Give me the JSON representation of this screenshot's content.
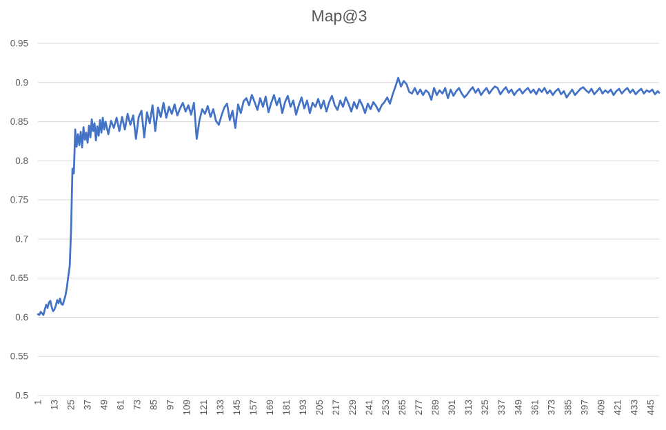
{
  "chart_data": {
    "type": "line",
    "title": "Map@3",
    "xlabel": "",
    "ylabel": "",
    "legend": "none",
    "grid": "horizontal",
    "line_color": "#4472C4",
    "gridline_color": "#D9D9D9",
    "text_color": "#595959",
    "background_color": "#FFFFFF",
    "ylim": [
      0.5,
      0.95
    ],
    "xlim": [
      1,
      451
    ],
    "y_tick_labels": [
      "0.5",
      "0.55",
      "0.6",
      "0.65",
      "0.7",
      "0.75",
      "0.8",
      "0.85",
      "0.9",
      "0.95"
    ],
    "x_tick_labels": [
      "1",
      "13",
      "25",
      "37",
      "49",
      "61",
      "73",
      "85",
      "97",
      "109",
      "121",
      "133",
      "145",
      "157",
      "169",
      "181",
      "193",
      "205",
      "217",
      "229",
      "241",
      "253",
      "265",
      "277",
      "289",
      "301",
      "313",
      "325",
      "337",
      "349",
      "361",
      "373",
      "385",
      "397",
      "409",
      "421",
      "433",
      "445"
    ],
    "points": [
      [
        1,
        0.604
      ],
      [
        2,
        0.603
      ],
      [
        3,
        0.607
      ],
      [
        4,
        0.605
      ],
      [
        5,
        0.603
      ],
      [
        6,
        0.61
      ],
      [
        7,
        0.616
      ],
      [
        8,
        0.612
      ],
      [
        9,
        0.619
      ],
      [
        10,
        0.621
      ],
      [
        11,
        0.613
      ],
      [
        12,
        0.608
      ],
      [
        13,
        0.61
      ],
      [
        14,
        0.615
      ],
      [
        15,
        0.622
      ],
      [
        16,
        0.618
      ],
      [
        17,
        0.624
      ],
      [
        18,
        0.617
      ],
      [
        19,
        0.616
      ],
      [
        20,
        0.622
      ],
      [
        21,
        0.628
      ],
      [
        22,
        0.638
      ],
      [
        23,
        0.652
      ],
      [
        24,
        0.665
      ],
      [
        25,
        0.712
      ],
      [
        26,
        0.79
      ],
      [
        27,
        0.784
      ],
      [
        28,
        0.84
      ],
      [
        29,
        0.818
      ],
      [
        30,
        0.834
      ],
      [
        31,
        0.82
      ],
      [
        32,
        0.837
      ],
      [
        33,
        0.817
      ],
      [
        34,
        0.843
      ],
      [
        35,
        0.827
      ],
      [
        36,
        0.836
      ],
      [
        37,
        0.823
      ],
      [
        38,
        0.845
      ],
      [
        39,
        0.83
      ],
      [
        40,
        0.853
      ],
      [
        41,
        0.838
      ],
      [
        42,
        0.848
      ],
      [
        43,
        0.826
      ],
      [
        44,
        0.844
      ],
      [
        45,
        0.832
      ],
      [
        46,
        0.852
      ],
      [
        47,
        0.836
      ],
      [
        48,
        0.855
      ],
      [
        49,
        0.84
      ],
      [
        50,
        0.85
      ],
      [
        52,
        0.834
      ],
      [
        54,
        0.851
      ],
      [
        56,
        0.842
      ],
      [
        58,
        0.855
      ],
      [
        60,
        0.838
      ],
      [
        62,
        0.856
      ],
      [
        64,
        0.84
      ],
      [
        66,
        0.86
      ],
      [
        68,
        0.846
      ],
      [
        70,
        0.858
      ],
      [
        72,
        0.828
      ],
      [
        74,
        0.856
      ],
      [
        76,
        0.864
      ],
      [
        78,
        0.83
      ],
      [
        80,
        0.862
      ],
      [
        82,
        0.848
      ],
      [
        84,
        0.871
      ],
      [
        86,
        0.838
      ],
      [
        88,
        0.868
      ],
      [
        90,
        0.856
      ],
      [
        92,
        0.874
      ],
      [
        94,
        0.855
      ],
      [
        96,
        0.869
      ],
      [
        98,
        0.86
      ],
      [
        100,
        0.872
      ],
      [
        102,
        0.858
      ],
      [
        104,
        0.867
      ],
      [
        106,
        0.874
      ],
      [
        108,
        0.863
      ],
      [
        110,
        0.871
      ],
      [
        112,
        0.859
      ],
      [
        114,
        0.874
      ],
      [
        116,
        0.828
      ],
      [
        118,
        0.852
      ],
      [
        120,
        0.866
      ],
      [
        122,
        0.86
      ],
      [
        124,
        0.87
      ],
      [
        126,
        0.856
      ],
      [
        128,
        0.866
      ],
      [
        130,
        0.851
      ],
      [
        132,
        0.846
      ],
      [
        134,
        0.858
      ],
      [
        136,
        0.868
      ],
      [
        138,
        0.873
      ],
      [
        140,
        0.852
      ],
      [
        142,
        0.864
      ],
      [
        144,
        0.842
      ],
      [
        146,
        0.872
      ],
      [
        148,
        0.861
      ],
      [
        150,
        0.876
      ],
      [
        152,
        0.88
      ],
      [
        154,
        0.871
      ],
      [
        156,
        0.884
      ],
      [
        158,
        0.875
      ],
      [
        160,
        0.865
      ],
      [
        162,
        0.88
      ],
      [
        164,
        0.869
      ],
      [
        166,
        0.882
      ],
      [
        168,
        0.862
      ],
      [
        170,
        0.874
      ],
      [
        172,
        0.884
      ],
      [
        174,
        0.871
      ],
      [
        176,
        0.88
      ],
      [
        178,
        0.861
      ],
      [
        180,
        0.875
      ],
      [
        182,
        0.883
      ],
      [
        184,
        0.869
      ],
      [
        186,
        0.877
      ],
      [
        188,
        0.859
      ],
      [
        190,
        0.871
      ],
      [
        192,
        0.881
      ],
      [
        194,
        0.867
      ],
      [
        196,
        0.877
      ],
      [
        198,
        0.861
      ],
      [
        200,
        0.874
      ],
      [
        202,
        0.869
      ],
      [
        204,
        0.879
      ],
      [
        206,
        0.867
      ],
      [
        208,
        0.877
      ],
      [
        210,
        0.863
      ],
      [
        212,
        0.875
      ],
      [
        214,
        0.883
      ],
      [
        216,
        0.871
      ],
      [
        218,
        0.865
      ],
      [
        220,
        0.877
      ],
      [
        222,
        0.869
      ],
      [
        224,
        0.881
      ],
      [
        226,
        0.873
      ],
      [
        228,
        0.863
      ],
      [
        230,
        0.875
      ],
      [
        232,
        0.867
      ],
      [
        234,
        0.878
      ],
      [
        236,
        0.871
      ],
      [
        238,
        0.861
      ],
      [
        240,
        0.873
      ],
      [
        242,
        0.866
      ],
      [
        244,
        0.875
      ],
      [
        246,
        0.87
      ],
      [
        248,
        0.863
      ],
      [
        250,
        0.871
      ],
      [
        252,
        0.875
      ],
      [
        254,
        0.881
      ],
      [
        256,
        0.873
      ],
      [
        258,
        0.885
      ],
      [
        260,
        0.895
      ],
      [
        262,
        0.906
      ],
      [
        264,
        0.895
      ],
      [
        266,
        0.902
      ],
      [
        268,
        0.898
      ],
      [
        270,
        0.888
      ],
      [
        272,
        0.886
      ],
      [
        274,
        0.893
      ],
      [
        276,
        0.885
      ],
      [
        278,
        0.891
      ],
      [
        280,
        0.884
      ],
      [
        282,
        0.89
      ],
      [
        284,
        0.887
      ],
      [
        286,
        0.878
      ],
      [
        288,
        0.893
      ],
      [
        290,
        0.884
      ],
      [
        292,
        0.89
      ],
      [
        294,
        0.886
      ],
      [
        296,
        0.893
      ],
      [
        298,
        0.88
      ],
      [
        300,
        0.891
      ],
      [
        302,
        0.883
      ],
      [
        304,
        0.889
      ],
      [
        306,
        0.893
      ],
      [
        308,
        0.886
      ],
      [
        310,
        0.881
      ],
      [
        312,
        0.885
      ],
      [
        314,
        0.89
      ],
      [
        316,
        0.894
      ],
      [
        318,
        0.887
      ],
      [
        320,
        0.892
      ],
      [
        322,
        0.884
      ],
      [
        324,
        0.889
      ],
      [
        326,
        0.893
      ],
      [
        328,
        0.886
      ],
      [
        330,
        0.891
      ],
      [
        332,
        0.895
      ],
      [
        334,
        0.893
      ],
      [
        336,
        0.885
      ],
      [
        338,
        0.89
      ],
      [
        340,
        0.894
      ],
      [
        342,
        0.887
      ],
      [
        344,
        0.891
      ],
      [
        346,
        0.884
      ],
      [
        348,
        0.889
      ],
      [
        350,
        0.892
      ],
      [
        352,
        0.886
      ],
      [
        354,
        0.89
      ],
      [
        356,
        0.893
      ],
      [
        358,
        0.887
      ],
      [
        360,
        0.891
      ],
      [
        362,
        0.885
      ],
      [
        364,
        0.892
      ],
      [
        366,
        0.888
      ],
      [
        368,
        0.893
      ],
      [
        370,
        0.886
      ],
      [
        372,
        0.89
      ],
      [
        374,
        0.884
      ],
      [
        376,
        0.889
      ],
      [
        378,
        0.892
      ],
      [
        380,
        0.885
      ],
      [
        382,
        0.889
      ],
      [
        384,
        0.881
      ],
      [
        386,
        0.886
      ],
      [
        388,
        0.891
      ],
      [
        390,
        0.884
      ],
      [
        392,
        0.888
      ],
      [
        394,
        0.892
      ],
      [
        396,
        0.894
      ],
      [
        398,
        0.89
      ],
      [
        400,
        0.887
      ],
      [
        402,
        0.892
      ],
      [
        404,
        0.885
      ],
      [
        406,
        0.889
      ],
      [
        408,
        0.893
      ],
      [
        410,
        0.886
      ],
      [
        412,
        0.89
      ],
      [
        414,
        0.887
      ],
      [
        416,
        0.891
      ],
      [
        418,
        0.884
      ],
      [
        420,
        0.889
      ],
      [
        422,
        0.892
      ],
      [
        424,
        0.886
      ],
      [
        426,
        0.89
      ],
      [
        428,
        0.893
      ],
      [
        430,
        0.887
      ],
      [
        432,
        0.891
      ],
      [
        434,
        0.885
      ],
      [
        436,
        0.889
      ],
      [
        438,
        0.892
      ],
      [
        440,
        0.886
      ],
      [
        442,
        0.89
      ],
      [
        444,
        0.888
      ],
      [
        446,
        0.891
      ],
      [
        448,
        0.885
      ],
      [
        450,
        0.889
      ],
      [
        451,
        0.887
      ]
    ]
  }
}
